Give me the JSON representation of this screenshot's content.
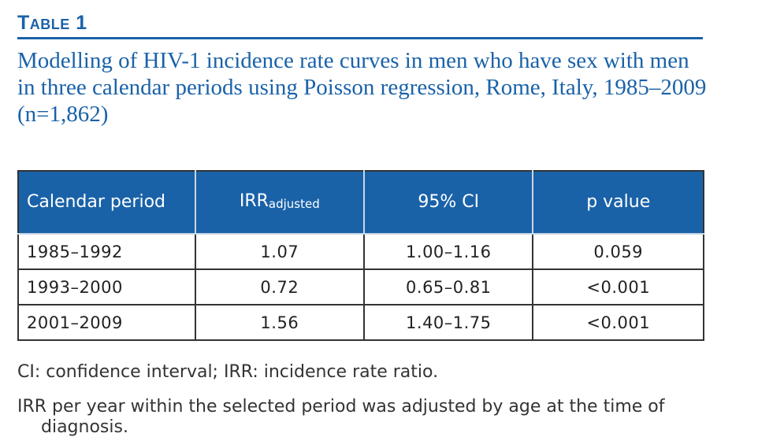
{
  "table_label": "Table 1",
  "caption": "Modelling of HIV-1 incidence rate curves in men who have sex with men in three calendar periods using Poisson regression, Rome, Italy, 1985–2009 (n=1,862)",
  "table": {
    "headers": {
      "period": "Calendar period",
      "irr_main": "IRR",
      "irr_sub": "adjusted",
      "ci": "95% CI",
      "p": "p value"
    },
    "rows": [
      {
        "period": "1985–1992",
        "irr": "1.07",
        "ci": "1.00–1.16",
        "p": "0.059"
      },
      {
        "period": "1993–2000",
        "irr": "0.72",
        "ci": "0.65–0.81",
        "p": "<0.001"
      },
      {
        "period": "2001–2009",
        "irr": "1.56",
        "ci": "1.40–1.75",
        "p": "<0.001"
      }
    ]
  },
  "footnotes": [
    "CI: confidence interval; IRR: incidence rate ratio.",
    "IRR per year within the selected period was adjusted by age at the time of diagnosis."
  ],
  "colors": {
    "accent": "#1a62a8",
    "header_text": "#ffffff",
    "body_text": "#222222",
    "border": "#333333"
  }
}
